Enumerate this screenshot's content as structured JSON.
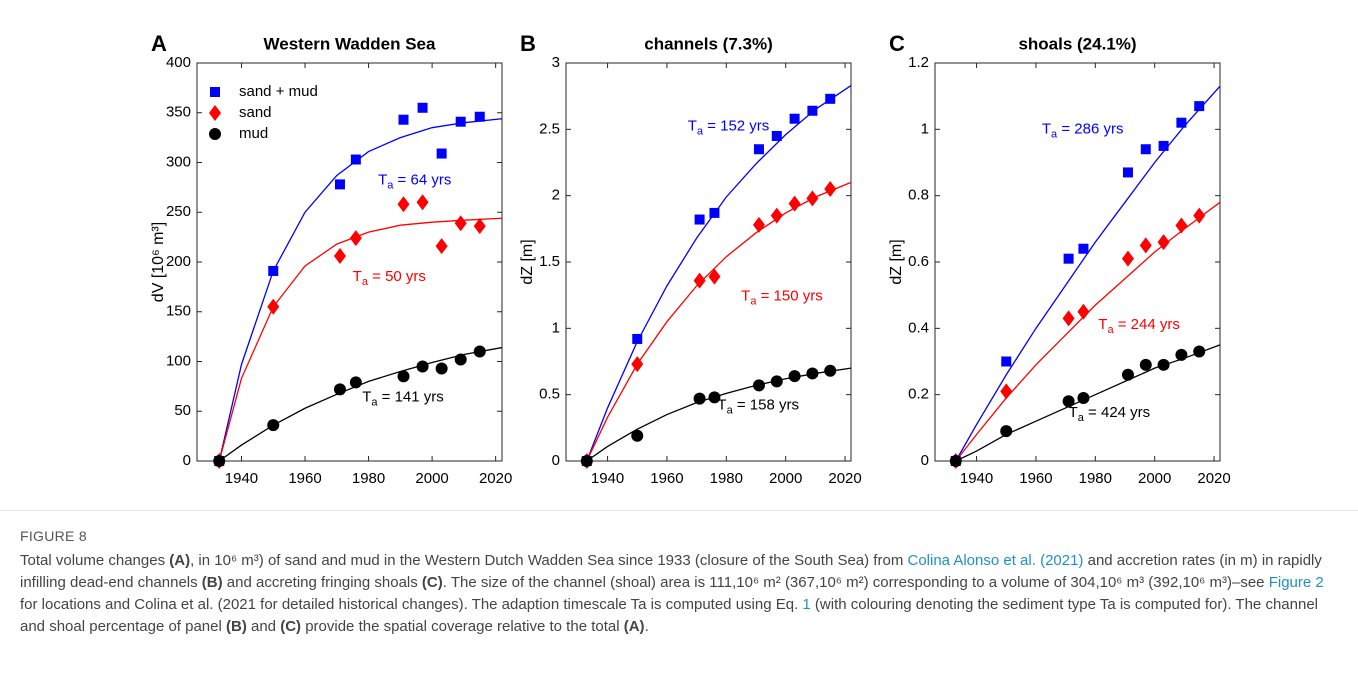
{
  "chart_data": [
    {
      "type": "scatter",
      "panel": "A",
      "title": "Western Wadden Sea",
      "ylabel": "dV [10⁶ m³]",
      "x": [
        1933,
        1950,
        1971,
        1976,
        1991,
        1997,
        2003,
        2009,
        2015
      ],
      "xlim": [
        1926,
        2022
      ],
      "xticks": [
        1940,
        1960,
        1980,
        2000,
        2020
      ],
      "ylim": [
        0,
        400
      ],
      "yticks": [
        0,
        50,
        100,
        150,
        200,
        250,
        300,
        350,
        400
      ],
      "legend": "upper left",
      "series": [
        {
          "name": "sand + mud",
          "color": "#0000ff",
          "marker": "square",
          "values": [
            0,
            191,
            278,
            303,
            343,
            355,
            309,
            341,
            346
          ]
        },
        {
          "name": "sand",
          "color": "#ff0000",
          "marker": "diamond",
          "values": [
            0,
            155,
            206,
            224,
            258,
            260,
            216,
            239,
            236
          ]
        },
        {
          "name": "mud",
          "color": "#000000",
          "marker": "circle",
          "values": [
            0,
            36,
            72,
            79,
            85,
            95,
            93,
            102,
            110
          ]
        }
      ],
      "fits": [
        {
          "color": "#0000ff",
          "x": [
            1933,
            1940,
            1950,
            1960,
            1970,
            1980,
            1990,
            2000,
            2010,
            2022
          ],
          "values": [
            0,
            97,
            191,
            250,
            287,
            311,
            325,
            335,
            340,
            344
          ]
        },
        {
          "color": "#ff0000",
          "x": [
            1933,
            1940,
            1950,
            1960,
            1970,
            1980,
            1990,
            2000,
            2010,
            2022
          ],
          "values": [
            0,
            83,
            155,
            196,
            218,
            230,
            237,
            240,
            242,
            244
          ]
        },
        {
          "color": "#000000",
          "x": [
            1933,
            1940,
            1950,
            1960,
            1970,
            1980,
            1990,
            2000,
            2010,
            2022
          ],
          "values": [
            0,
            16,
            36,
            53,
            67,
            80,
            90,
            99,
            107,
            114
          ]
        }
      ],
      "annotations": [
        {
          "text": "T",
          "sub": "a",
          "rest": " = 64 yrs",
          "color": "#0000ff"
        },
        {
          "text": "T",
          "sub": "a",
          "rest": " = 50 yrs",
          "color": "#ff0000"
        },
        {
          "text": "T",
          "sub": "a",
          "rest": " = 141 yrs",
          "color": "#000000"
        }
      ]
    },
    {
      "type": "scatter",
      "panel": "B",
      "title": "channels (7.3%)",
      "ylabel": "dZ [m]",
      "x": [
        1933,
        1950,
        1971,
        1976,
        1991,
        1997,
        2003,
        2009,
        2015
      ],
      "xlim": [
        1926,
        2022
      ],
      "xticks": [
        1940,
        1960,
        1980,
        2000,
        2020
      ],
      "ylim": [
        0,
        3
      ],
      "yticks": [
        0,
        0.5,
        1,
        1.5,
        2,
        2.5,
        3
      ],
      "series": [
        {
          "color": "#0000ff",
          "marker": "square",
          "values": [
            0,
            0.92,
            1.82,
            1.87,
            2.35,
            2.45,
            2.58,
            2.64,
            2.73
          ]
        },
        {
          "color": "#ff0000",
          "marker": "diamond",
          "values": [
            0,
            0.73,
            1.36,
            1.39,
            1.78,
            1.85,
            1.94,
            1.98,
            2.05
          ]
        },
        {
          "color": "#000000",
          "marker": "circle",
          "values": [
            0,
            0.19,
            0.47,
            0.48,
            0.57,
            0.6,
            0.64,
            0.66,
            0.68
          ]
        }
      ],
      "fits": [
        {
          "color": "#0000ff",
          "x": [
            1933,
            1940,
            1950,
            1960,
            1970,
            1980,
            1990,
            2000,
            2010,
            2022
          ],
          "values": [
            0,
            0.4,
            0.9,
            1.32,
            1.68,
            1.99,
            2.24,
            2.46,
            2.65,
            2.83
          ]
        },
        {
          "color": "#ff0000",
          "x": [
            1933,
            1940,
            1950,
            1960,
            1970,
            1980,
            1990,
            2000,
            2010,
            2022
          ],
          "values": [
            0,
            0.33,
            0.73,
            1.05,
            1.32,
            1.54,
            1.72,
            1.87,
            1.99,
            2.1
          ]
        },
        {
          "color": "#000000",
          "x": [
            1933,
            1940,
            1950,
            1960,
            1970,
            1980,
            1990,
            2000,
            2010,
            2022
          ],
          "values": [
            0,
            0.11,
            0.24,
            0.35,
            0.44,
            0.51,
            0.57,
            0.62,
            0.66,
            0.7
          ]
        }
      ],
      "annotations": [
        {
          "text": "T",
          "sub": "a",
          "rest": " = 152 yrs",
          "color": "#0000ff"
        },
        {
          "text": "T",
          "sub": "a",
          "rest": " = 150 yrs",
          "color": "#ff0000"
        },
        {
          "text": "T",
          "sub": "a",
          "rest": " = 158 yrs",
          "color": "#000000"
        }
      ]
    },
    {
      "type": "scatter",
      "panel": "C",
      "title": "shoals (24.1%)",
      "ylabel": "dZ [m]",
      "x": [
        1933,
        1950,
        1971,
        1976,
        1991,
        1997,
        2003,
        2009,
        2015
      ],
      "xlim": [
        1926,
        2022
      ],
      "xticks": [
        1940,
        1960,
        1980,
        2000,
        2020
      ],
      "ylim": [
        0,
        1.2
      ],
      "yticks": [
        0,
        0.2,
        0.4,
        0.6,
        0.8,
        1,
        1.2
      ],
      "series": [
        {
          "color": "#0000ff",
          "marker": "square",
          "values": [
            0,
            0.3,
            0.61,
            0.64,
            0.87,
            0.94,
            0.95,
            1.02,
            1.07
          ]
        },
        {
          "color": "#ff0000",
          "marker": "diamond",
          "values": [
            0,
            0.21,
            0.43,
            0.45,
            0.61,
            0.65,
            0.66,
            0.71,
            0.74
          ]
        },
        {
          "color": "#000000",
          "marker": "circle",
          "values": [
            0,
            0.09,
            0.18,
            0.19,
            0.26,
            0.29,
            0.29,
            0.32,
            0.33
          ]
        }
      ],
      "fits": [
        {
          "color": "#0000ff",
          "x": [
            1933,
            1940,
            1950,
            1960,
            1970,
            1980,
            1990,
            2000,
            2010,
            2022
          ],
          "values": [
            0,
            0.11,
            0.26,
            0.4,
            0.53,
            0.66,
            0.78,
            0.9,
            1.01,
            1.13
          ]
        },
        {
          "color": "#ff0000",
          "x": [
            1933,
            1940,
            1950,
            1960,
            1970,
            1980,
            1990,
            2000,
            2010,
            2022
          ],
          "values": [
            0,
            0.08,
            0.19,
            0.29,
            0.38,
            0.47,
            0.55,
            0.63,
            0.7,
            0.78
          ]
        },
        {
          "color": "#000000",
          "x": [
            1933,
            1940,
            1950,
            1960,
            1970,
            1980,
            1990,
            2000,
            2010,
            2022
          ],
          "values": [
            0,
            0.03,
            0.08,
            0.12,
            0.16,
            0.2,
            0.24,
            0.28,
            0.31,
            0.35
          ]
        }
      ],
      "annotations": [
        {
          "text": "T",
          "sub": "a",
          "rest": " = 286 yrs",
          "color": "#0000ff"
        },
        {
          "text": "T",
          "sub": "a",
          "rest": " = 244 yrs",
          "color": "#ff0000"
        },
        {
          "text": "T",
          "sub": "a",
          "rest": " = 424 yrs",
          "color": "#000000"
        }
      ]
    }
  ],
  "caption": {
    "label": "FIGURE 8",
    "runs": [
      "Total volume changes ",
      "(A)",
      ", in 10⁶ m³) of sand and mud in the Western Dutch Wadden Sea since 1933 (closure of the South Sea) from ",
      "Colina Alonso et al. (2021)",
      " and accretion rates (in m) in rapidly infilling dead-end channels ",
      "(B)",
      " and accreting fringing shoals ",
      "(C)",
      ". The size of the channel (shoal) area is 111,10⁶ m² (367,10⁶ m²) corresponding to a volume of 304,10⁶ m³ (392,10⁶ m³)–see ",
      "Figure 2",
      " for locations and Colina et al. (2021 for detailed historical changes). The adaption timescale Ta is computed using Eq. ",
      "1",
      " (with colouring denoting the sediment type Ta is computed for). The channel and shoal percentage of panel ",
      "(B)",
      " and ",
      "(C)",
      " provide the spatial coverage relative to the total ",
      "(A)",
      "."
    ]
  }
}
